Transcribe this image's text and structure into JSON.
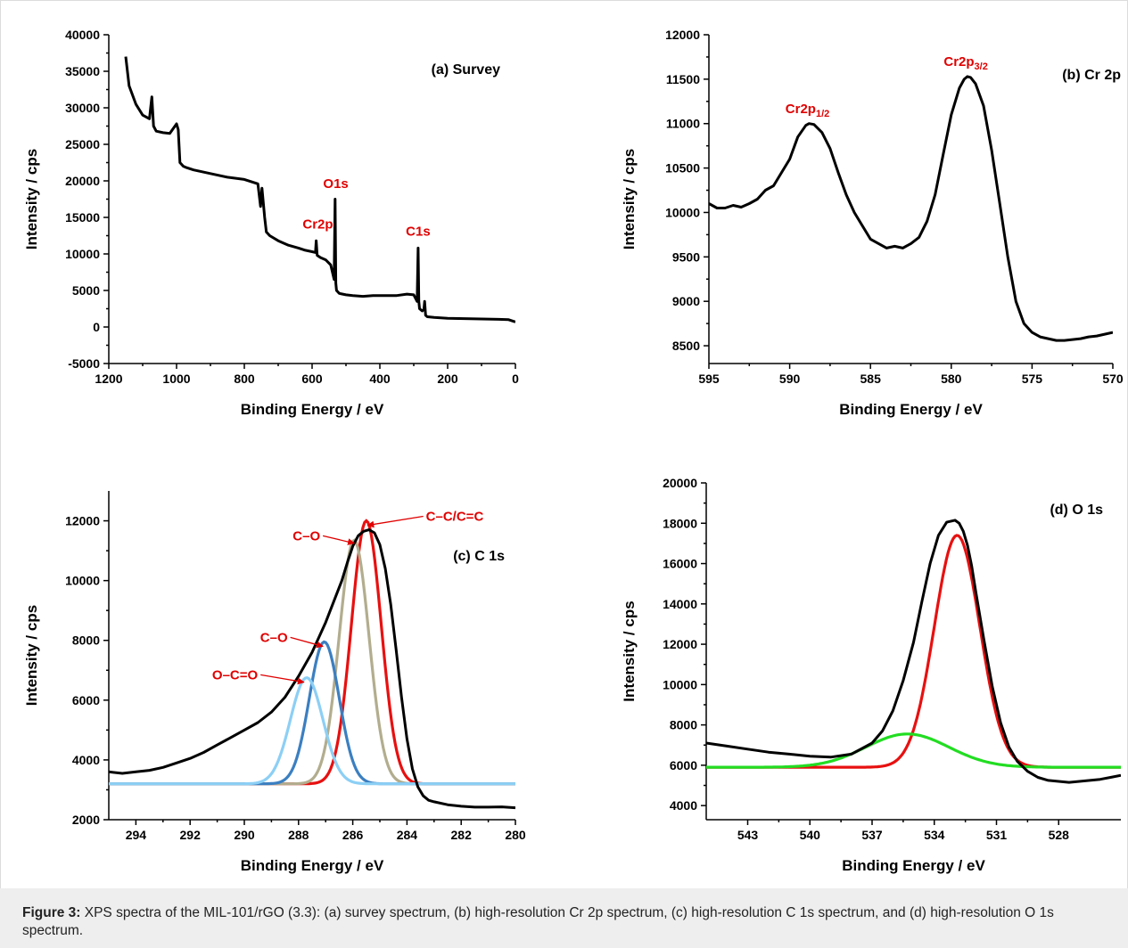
{
  "caption": {
    "label": "Figure 3:",
    "text": " XPS spectra of the MIL-101/rGO (3.3): (a) survey spectrum, (b) high-resolution Cr 2p spectrum, (c) high-resolution C 1s spectrum, and (d) high-resolution O 1s spectrum."
  },
  "colors": {
    "measured": "#000000",
    "annotation": "#e00000",
    "fit_red": "#e81010",
    "fit_tan": "#b2ad8e",
    "fit_blue": "#3b7fc1",
    "fit_lightblue": "#8ccff5",
    "fit_green": "#22dd22"
  },
  "chart_data": [
    {
      "id": "a",
      "type": "line",
      "title": "(a) Survey",
      "xlabel": "Binding Energy / eV",
      "ylabel": "Intensity / cps",
      "xlim": [
        1200,
        0
      ],
      "ylim": [
        -5000,
        40000
      ],
      "xticks": [
        1200,
        1000,
        800,
        600,
        400,
        200,
        0
      ],
      "yticks": [
        -5000,
        0,
        5000,
        10000,
        15000,
        20000,
        25000,
        30000,
        35000,
        40000
      ],
      "grid": false,
      "series": [
        {
          "color": "#000000",
          "x": [
            1150,
            1140,
            1120,
            1100,
            1080,
            1073,
            1071,
            1068,
            1060,
            1040,
            1020,
            1000,
            995,
            990,
            980,
            970,
            950,
            900,
            850,
            800,
            760,
            752,
            748,
            740,
            735,
            725,
            700,
            670,
            640,
            620,
            600,
            590,
            588,
            585,
            575,
            560,
            545,
            535,
            532,
            530,
            528,
            520,
            500,
            480,
            450,
            420,
            400,
            350,
            320,
            300,
            290,
            287,
            285,
            283,
            275,
            270,
            268,
            265,
            260,
            240,
            200,
            150,
            100,
            50,
            20,
            0
          ],
          "y": [
            37000,
            33000,
            30500,
            29000,
            28500,
            31500,
            30000,
            27500,
            26800,
            26600,
            26500,
            27800,
            27000,
            22500,
            22000,
            21800,
            21500,
            21000,
            20500,
            20200,
            19600,
            16500,
            19000,
            15000,
            13000,
            12500,
            11800,
            11200,
            10800,
            10500,
            10300,
            10200,
            11800,
            9800,
            9500,
            9200,
            8500,
            6500,
            17500,
            6000,
            5000,
            4600,
            4400,
            4300,
            4200,
            4300,
            4300,
            4300,
            4500,
            4400,
            3500,
            10800,
            3500,
            2500,
            2200,
            2400,
            3500,
            1600,
            1400,
            1300,
            1200,
            1150,
            1100,
            1050,
            1000,
            700
          ]
        }
      ],
      "annotations": [
        {
          "text": "O1s",
          "x": 530,
          "y": 19000
        },
        {
          "text": "Cr2p",
          "x": 583,
          "y": 13500
        },
        {
          "text": "C1s",
          "x": 287,
          "y": 12500
        }
      ]
    },
    {
      "id": "b",
      "type": "line",
      "title": "(b) Cr 2p",
      "xlabel": "Binding Energy  / eV",
      "ylabel": "Intensity / cps",
      "xlim": [
        595,
        570
      ],
      "ylim": [
        8300,
        12000
      ],
      "xticks": [
        595,
        590,
        585,
        580,
        575,
        570
      ],
      "yticks": [
        8500,
        9000,
        9500,
        10000,
        10500,
        11000,
        11500,
        12000
      ],
      "grid": false,
      "series": [
        {
          "color": "#000000",
          "x": [
            595,
            594.5,
            594,
            593.5,
            593,
            592.5,
            592,
            591.5,
            591,
            590.5,
            590,
            589.5,
            589,
            588.8,
            588.5,
            588,
            587.5,
            587,
            586.5,
            586,
            585.5,
            585,
            584.5,
            584,
            583.5,
            583,
            582.5,
            582,
            581.5,
            581,
            580.5,
            580,
            579.5,
            579.2,
            579,
            578.8,
            578.5,
            578,
            577.5,
            577,
            576.5,
            576,
            575.5,
            575,
            574.5,
            574,
            573.5,
            573,
            572.5,
            572,
            571.5,
            571,
            570.5,
            570
          ],
          "y": [
            10100,
            10050,
            10050,
            10080,
            10060,
            10100,
            10150,
            10250,
            10300,
            10450,
            10600,
            10850,
            10980,
            11000,
            10990,
            10900,
            10720,
            10450,
            10200,
            10000,
            9850,
            9700,
            9650,
            9600,
            9620,
            9600,
            9650,
            9720,
            9900,
            10200,
            10650,
            11100,
            11400,
            11500,
            11530,
            11520,
            11450,
            11200,
            10700,
            10100,
            9500,
            9000,
            8750,
            8650,
            8600,
            8580,
            8560,
            8560,
            8570,
            8580,
            8600,
            8610,
            8630,
            8650
          ]
        }
      ],
      "annotations": [
        {
          "text": "Cr2p",
          "sub": "1/2",
          "x": 588.9,
          "y": 11120
        },
        {
          "text": "Cr2p",
          "sub": "3/2",
          "x": 579.1,
          "y": 11650
        }
      ]
    },
    {
      "id": "c",
      "type": "line",
      "title": "(c) C 1s",
      "xlabel": "Binding Energy / eV",
      "ylabel": "Intensity / cps",
      "xlim": [
        295,
        280
      ],
      "ylim": [
        2000,
        13000
      ],
      "xticks": [
        294,
        292,
        290,
        288,
        286,
        284,
        282,
        280
      ],
      "yticks": [
        2000,
        4000,
        6000,
        8000,
        10000,
        12000
      ],
      "grid": false,
      "series": [
        {
          "color": "#000000",
          "x": [
            295,
            294.5,
            294,
            293.5,
            293,
            292.5,
            292,
            291.5,
            291,
            290.5,
            290,
            289.5,
            289,
            288.5,
            288,
            287.5,
            287,
            286.7,
            286.4,
            286.2,
            286,
            285.8,
            285.6,
            285.4,
            285.2,
            285,
            284.8,
            284.6,
            284.4,
            284.2,
            284,
            283.8,
            283.6,
            283.4,
            283.2,
            283,
            282.5,
            282,
            281.5,
            281,
            280.5,
            280
          ],
          "y": [
            3600,
            3550,
            3600,
            3650,
            3750,
            3900,
            4050,
            4250,
            4500,
            4750,
            5000,
            5250,
            5600,
            6100,
            6800,
            7600,
            8600,
            9300,
            10000,
            10600,
            11150,
            11500,
            11650,
            11700,
            11600,
            11200,
            10400,
            9200,
            7700,
            6100,
            4700,
            3700,
            3100,
            2800,
            2650,
            2600,
            2500,
            2450,
            2420,
            2420,
            2430,
            2400
          ]
        }
      ],
      "components": [
        {
          "color": "#e81010",
          "center": 285.5,
          "amplitude": 8800,
          "sigma": 0.55
        },
        {
          "color": "#b2ad8e",
          "center": 285.95,
          "amplitude": 8150,
          "sigma": 0.55
        },
        {
          "color": "#3b7fc1",
          "center": 287.05,
          "amplitude": 4750,
          "sigma": 0.55
        },
        {
          "color": "#8ccff5",
          "center": 287.7,
          "amplitude": 3550,
          "sigma": 0.6
        }
      ],
      "baseline": 3200,
      "annotations": [
        {
          "text": "C–C/C=C",
          "x": 283.3,
          "y": 12000,
          "arrow_to": [
            285.45,
            11850
          ]
        },
        {
          "text": "C–O",
          "x": 287.2,
          "y": 11350,
          "arrow_to": [
            285.95,
            11250
          ]
        },
        {
          "text": "C–O",
          "x": 288.4,
          "y": 7950,
          "arrow_to": [
            287.1,
            7800
          ]
        },
        {
          "text": "O–C=O",
          "x": 289.5,
          "y": 6700,
          "arrow_to": [
            287.8,
            6600
          ]
        }
      ]
    },
    {
      "id": "d",
      "type": "line",
      "title": "(d) O 1s",
      "xlabel": "Binding Energy / eV",
      "ylabel": "Intensity / cps",
      "xlim": [
        545,
        525
      ],
      "ylim": [
        3300,
        20000
      ],
      "xticks": [
        543,
        540,
        537,
        534,
        531,
        528
      ],
      "yticks": [
        4000,
        6000,
        8000,
        10000,
        12000,
        14000,
        16000,
        18000,
        20000
      ],
      "grid": false,
      "series": [
        {
          "color": "#000000",
          "x": [
            545,
            544,
            543,
            542,
            541,
            540,
            539,
            538,
            537,
            536.5,
            536,
            535.5,
            535,
            534.6,
            534.2,
            533.8,
            533.4,
            533,
            532.8,
            532.6,
            532.4,
            532.2,
            532,
            531.6,
            531.2,
            530.8,
            530.4,
            530,
            529.5,
            529,
            528.5,
            528,
            527.5,
            527,
            526.5,
            526,
            525.5,
            525
          ],
          "y": [
            7100,
            6950,
            6800,
            6650,
            6550,
            6450,
            6400,
            6550,
            7100,
            7700,
            8700,
            10200,
            12100,
            14100,
            16000,
            17400,
            18050,
            18150,
            18000,
            17600,
            16900,
            15900,
            14600,
            12200,
            9900,
            8100,
            6900,
            6200,
            5700,
            5400,
            5250,
            5200,
            5150,
            5200,
            5250,
            5300,
            5400,
            5500
          ]
        }
      ],
      "components": [
        {
          "color": "#e81010",
          "center": 532.9,
          "amplitude": 11500,
          "sigma": 1.1
        },
        {
          "color": "#22dd22",
          "center": 535.3,
          "amplitude": 1650,
          "sigma": 2.0
        }
      ],
      "baseline": 5900
    }
  ]
}
